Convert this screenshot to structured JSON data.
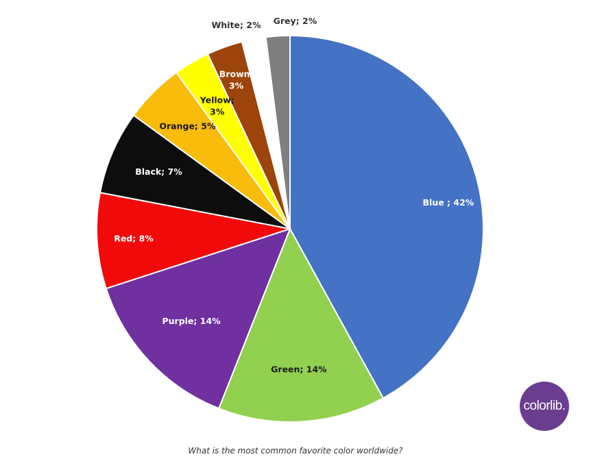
{
  "caption": "What is the most common favorite color worldwide?",
  "logo": {
    "text": "colorlib.",
    "color": "#6b3d91"
  },
  "chart_data": {
    "type": "pie",
    "title": "",
    "categories": [
      "Blue",
      "Green",
      "Purple",
      "Red",
      "Black",
      "Orange",
      "Yellow",
      "Brown",
      "White",
      "Grey"
    ],
    "values": [
      42,
      14,
      14,
      8,
      7,
      5,
      3,
      3,
      2,
      2
    ],
    "labels": [
      "Blue ; 42%",
      "Green; 14%",
      "Purple; 14%",
      "Red; 8%",
      "Black; 7%",
      "Orange; 5%",
      "Yellow;\n3%",
      "Brown;\n3%",
      "White; 2%",
      "Grey; 2%"
    ],
    "colors": [
      "#4472c4",
      "#92d050",
      "#7030a0",
      "#f20a0a",
      "#0d0d0d",
      "#f9bc0b",
      "#ffff00",
      "#9c4409",
      "#ffffff",
      "#7f7f7f"
    ],
    "label_colors": [
      "#ffffff",
      "#1a1a1a",
      "#ffffff",
      "#ffffff",
      "#ffffff",
      "#1a1a1a",
      "#1a1a1a",
      "#ffffff",
      "#333333",
      "#333333"
    ],
    "start": "12 o'clock",
    "direction": "clockwise"
  }
}
